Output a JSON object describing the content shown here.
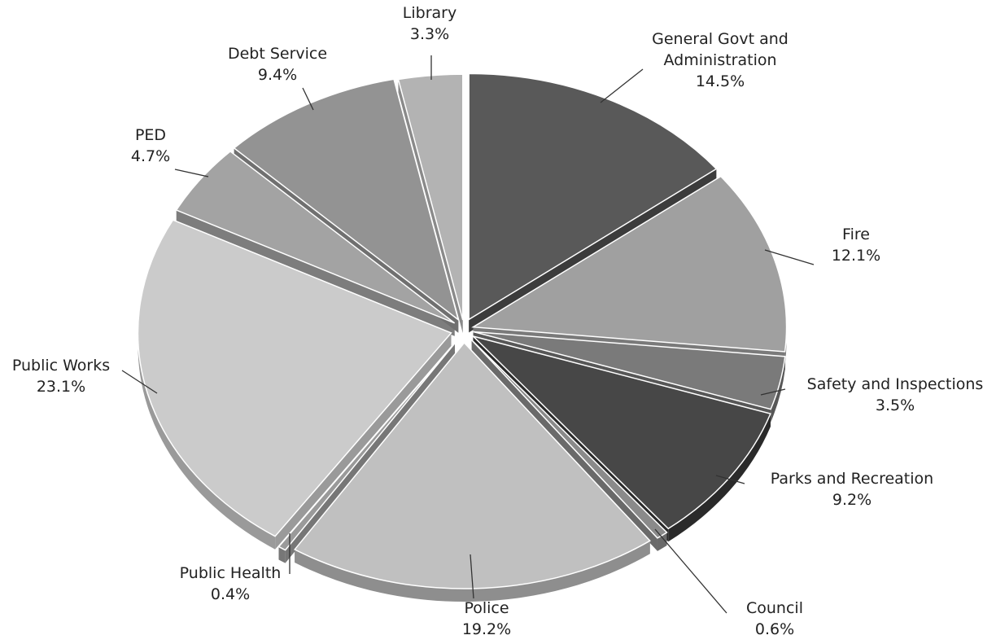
{
  "chart_data": {
    "type": "pie",
    "title": "",
    "style": "3d-exploded",
    "value_format": "percent",
    "slices": [
      {
        "label_lines": [
          "General Govt and",
          "Administration"
        ],
        "value": 14.5,
        "value_text": "14.5%",
        "color": "#595959",
        "side_color": "#3c3c3c"
      },
      {
        "label_lines": [
          "Fire"
        ],
        "value": 12.1,
        "value_text": "12.1%",
        "color": "#a0a0a0",
        "side_color": "#7a7a7a"
      },
      {
        "label_lines": [
          "Safety and Inspections"
        ],
        "value": 3.5,
        "value_text": "3.5%",
        "color": "#7a7a7a",
        "side_color": "#575757"
      },
      {
        "label_lines": [
          "Parks and Recreation"
        ],
        "value": 9.2,
        "value_text": "9.2%",
        "color": "#474747",
        "side_color": "#2a2a2a"
      },
      {
        "label_lines": [
          "Council"
        ],
        "value": 0.6,
        "value_text": "0.6%",
        "color": "#8a8a8a",
        "side_color": "#6a6a6a"
      },
      {
        "label_lines": [
          "Police"
        ],
        "value": 19.2,
        "value_text": "19.2%",
        "color": "#c0c0c0",
        "side_color": "#8e8e8e"
      },
      {
        "label_lines": [
          "Public Health"
        ],
        "value": 0.4,
        "value_text": "0.4%",
        "color": "#9a9a9a",
        "side_color": "#777777"
      },
      {
        "label_lines": [
          "Public Works"
        ],
        "value": 23.1,
        "value_text": "23.1%",
        "color": "#cbcbcb",
        "side_color": "#9a9a9a"
      },
      {
        "label_lines": [
          "PED"
        ],
        "value": 4.7,
        "value_text": "4.7%",
        "color": "#a3a3a3",
        "side_color": "#7d7d7d"
      },
      {
        "label_lines": [
          "Debt Service"
        ],
        "value": 9.4,
        "value_text": "9.4%",
        "color": "#939393",
        "side_color": "#707070"
      },
      {
        "label_lines": [
          "Library"
        ],
        "value": 3.3,
        "value_text": "3.3%",
        "color": "#b3b3b3",
        "side_color": "#8a8a8a"
      }
    ]
  }
}
